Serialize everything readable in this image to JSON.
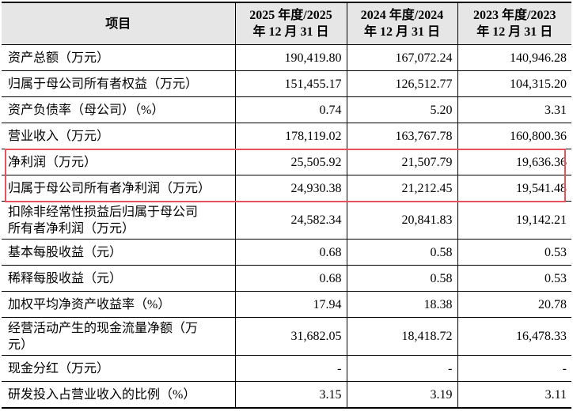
{
  "table": {
    "header": [
      "项目",
      [
        "2025 年度/2025",
        "年 12 月 31 日"
      ],
      [
        "2024 年度/2024",
        "年 12 月 31 日"
      ],
      [
        "2023 年度/2023",
        "年 12 月 31 日"
      ]
    ],
    "rows": [
      [
        "资产总额（万元）",
        "190,419.80",
        "167,072.24",
        "140,946.28"
      ],
      [
        "归属于母公司所有者权益（万元）",
        "151,455.17",
        "126,512.77",
        "104,315.20"
      ],
      [
        "资产负债率（母公司）（%）",
        "0.74",
        "5.20",
        "3.31"
      ],
      [
        "营业收入（万元）",
        "178,119.02",
        "163,767.78",
        "160,800.36"
      ],
      [
        "净利润（万元）",
        "25,505.92",
        "21,507.79",
        "19,636.36"
      ],
      [
        "归属于母公司所有者净利润（万元）",
        "24,930.38",
        "21,212.45",
        "19,541.48"
      ],
      [
        "扣除非经常性损益后归属于母公司所有者净利润（万元）",
        "24,582.34",
        "20,841.83",
        "19,142.21"
      ],
      [
        "基本每股收益（元）",
        "0.68",
        "0.58",
        "0.53"
      ],
      [
        "稀释每股收益（元）",
        "0.68",
        "0.58",
        "0.53"
      ],
      [
        "加权平均净资产收益率（%）",
        "17.94",
        "18.38",
        "20.78"
      ],
      [
        "经营活动产生的现金流量净额（万元）",
        "31,682.05",
        "18,418.72",
        "16,478.33"
      ],
      [
        "现金分红（万元）",
        "-",
        "-",
        "-"
      ],
      [
        "研发投入占营业收入的比例（%）",
        "3.15",
        "3.19",
        "3.11"
      ]
    ]
  }
}
